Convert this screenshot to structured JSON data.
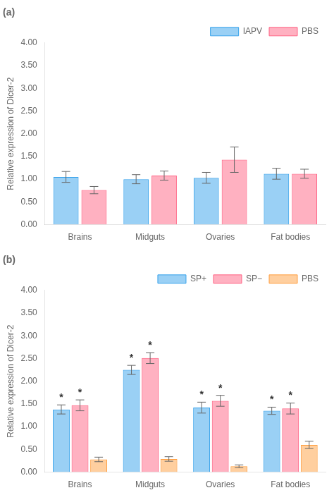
{
  "chart_data": [
    {
      "type": "bar",
      "title": "(a)",
      "y_label": "Relative expression of Dicer-2",
      "categories": [
        "Brains",
        "Midguts",
        "Ovaries",
        "Fat bodies"
      ],
      "series": [
        {
          "name": "IAPV",
          "values": [
            1.05,
            1.0,
            1.03,
            1.12
          ],
          "errors": [
            0.12,
            0.1,
            0.12,
            0.12
          ]
        },
        {
          "name": "PBS",
          "values": [
            0.76,
            1.08,
            1.43,
            1.12
          ],
          "errors": [
            0.08,
            0.1,
            0.28,
            0.1
          ]
        }
      ],
      "ylim": [
        0,
        4.0
      ],
      "yticks": [
        {
          "value": 0,
          "label": "0.00"
        },
        {
          "value": 0.5,
          "label": "0.50"
        },
        {
          "value": 1,
          "label": "1.00"
        },
        {
          "value": 1.5,
          "label": "1.50"
        },
        {
          "value": 2,
          "label": "2.00"
        },
        {
          "value": 2.5,
          "label": "2.50"
        },
        {
          "value": 3,
          "label": "3.00"
        },
        {
          "value": 3.5,
          "label": "3.50"
        },
        {
          "value": 4,
          "label": "4.00"
        }
      ],
      "grid": false,
      "legend": "upper right"
    },
    {
      "type": "bar",
      "title": "(b)",
      "y_label": "Relative expression of Dicer-2",
      "categories": [
        "Brains",
        "Midguts",
        "Ovaries",
        "Fat bodies"
      ],
      "series": [
        {
          "name": "SP+",
          "values": [
            1.38,
            2.25,
            1.42,
            1.35
          ],
          "errors": [
            0.1,
            0.1,
            0.12,
            0.08
          ],
          "annotations": [
            "*",
            "*",
            "*",
            "*"
          ]
        },
        {
          "name": "SP−",
          "values": [
            1.47,
            2.51,
            1.57,
            1.4
          ],
          "errors": [
            0.12,
            0.12,
            0.12,
            0.12
          ],
          "annotations": [
            "*",
            "*",
            "*",
            "*"
          ]
        },
        {
          "name": "PBS",
          "values": [
            0.28,
            0.29,
            0.13,
            0.6
          ],
          "errors": [
            0.05,
            0.05,
            0.03,
            0.08
          ]
        }
      ],
      "ylim": [
        0,
        4.0
      ],
      "yticks": [
        {
          "value": 0,
          "label": "0.00"
        },
        {
          "value": 0.5,
          "label": "0.50"
        },
        {
          "value": 1,
          "label": "1.00"
        },
        {
          "value": 1.5,
          "label": "1.50"
        },
        {
          "value": 2,
          "label": "2.00"
        },
        {
          "value": 2.5,
          "label": "2.50"
        },
        {
          "value": 3,
          "label": "3.00"
        },
        {
          "value": 3.5,
          "label": "3.50"
        },
        {
          "value": 4,
          "label": "4.00"
        }
      ],
      "grid": false,
      "legend": "upper right"
    }
  ]
}
